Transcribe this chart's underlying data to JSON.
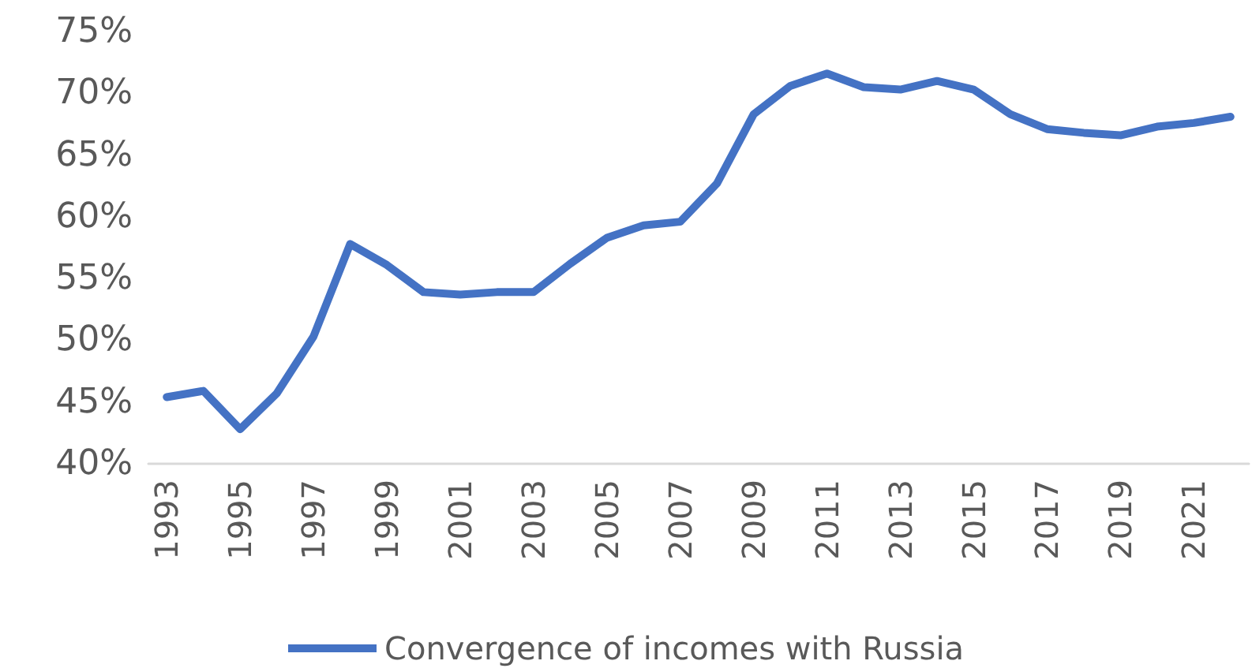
{
  "chart_data": {
    "type": "line",
    "categories": [
      "1993",
      null,
      "1995",
      null,
      "1997",
      null,
      "1999",
      null,
      "2001",
      null,
      "2003",
      null,
      "2005",
      null,
      "2007",
      null,
      "2009",
      null,
      "2011",
      null,
      "2013",
      null,
      "2015",
      null,
      "2017",
      null,
      "2019",
      null,
      "2021",
      null
    ],
    "series": [
      {
        "name": "Convergence of incomes with Russia",
        "color": "#4472c4",
        "values": [
          45.4,
          45.9,
          42.8,
          45.7,
          50.3,
          57.8,
          56.1,
          53.9,
          53.7,
          53.9,
          53.9,
          56.2,
          58.3,
          59.3,
          59.6,
          62.7,
          68.3,
          70.6,
          71.6,
          70.5,
          70.3,
          71.0,
          70.3,
          68.3,
          67.1,
          66.8,
          66.6,
          67.3,
          67.6,
          68.1
        ]
      }
    ],
    "ylim": [
      40,
      75
    ],
    "yticks": [
      {
        "value": 40,
        "label": "40%"
      },
      {
        "value": 45,
        "label": "45%"
      },
      {
        "value": 50,
        "label": "50%"
      },
      {
        "value": 55,
        "label": "55%"
      },
      {
        "value": 60,
        "label": "60%"
      },
      {
        "value": 65,
        "label": "65%"
      },
      {
        "value": 70,
        "label": "70%"
      },
      {
        "value": 75,
        "label": "75%"
      }
    ],
    "grid": false,
    "legend": "bottom",
    "marker": "none",
    "line_style": "solid"
  }
}
